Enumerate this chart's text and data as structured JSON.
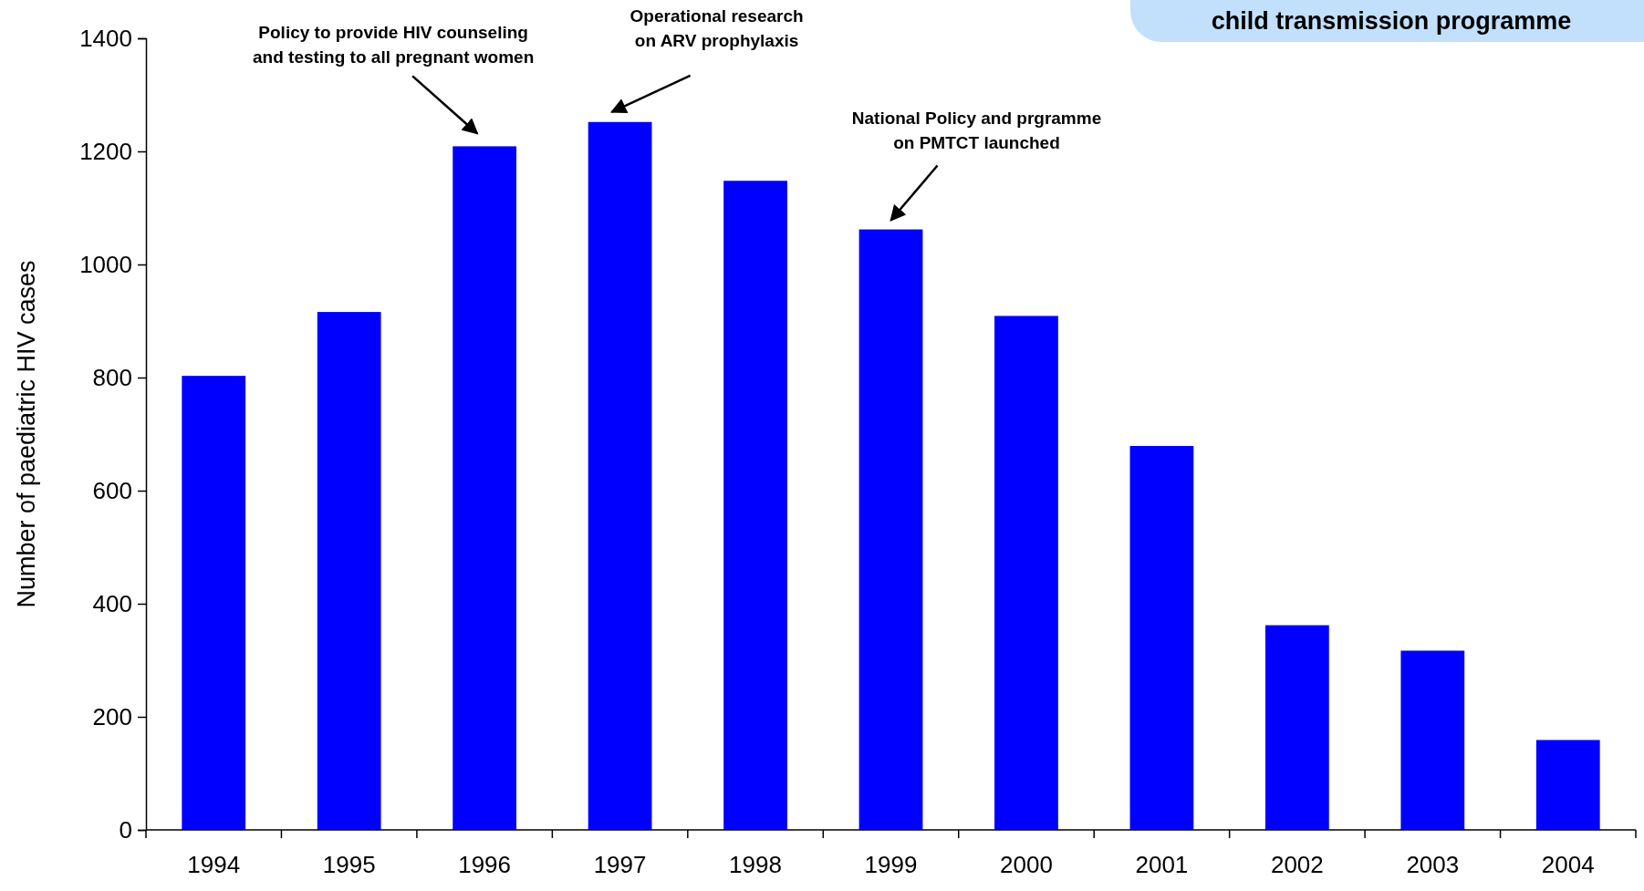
{
  "chart_data": {
    "type": "bar",
    "ylabel": "Number of paediatric HIV cases",
    "categories": [
      "1994",
      "1995",
      "1996",
      "1997",
      "1998",
      "1999",
      "2000",
      "2001",
      "2002",
      "2003",
      "2004"
    ],
    "values": [
      803,
      916,
      1209,
      1252,
      1148,
      1062,
      909,
      679,
      362,
      317,
      159
    ],
    "color": "#0000ff",
    "ylim": [
      0,
      1400
    ],
    "yticks": [
      0,
      200,
      400,
      600,
      800,
      1000,
      1200,
      1400
    ],
    "grid": false,
    "annotations": [
      "Policy to provide HIV counseling\nand testing to all pregnant women",
      "Operational research\non ARV prophylaxis",
      "National Policy and prgramme\non PMTCT launched",
      "child transmission programme"
    ]
  }
}
